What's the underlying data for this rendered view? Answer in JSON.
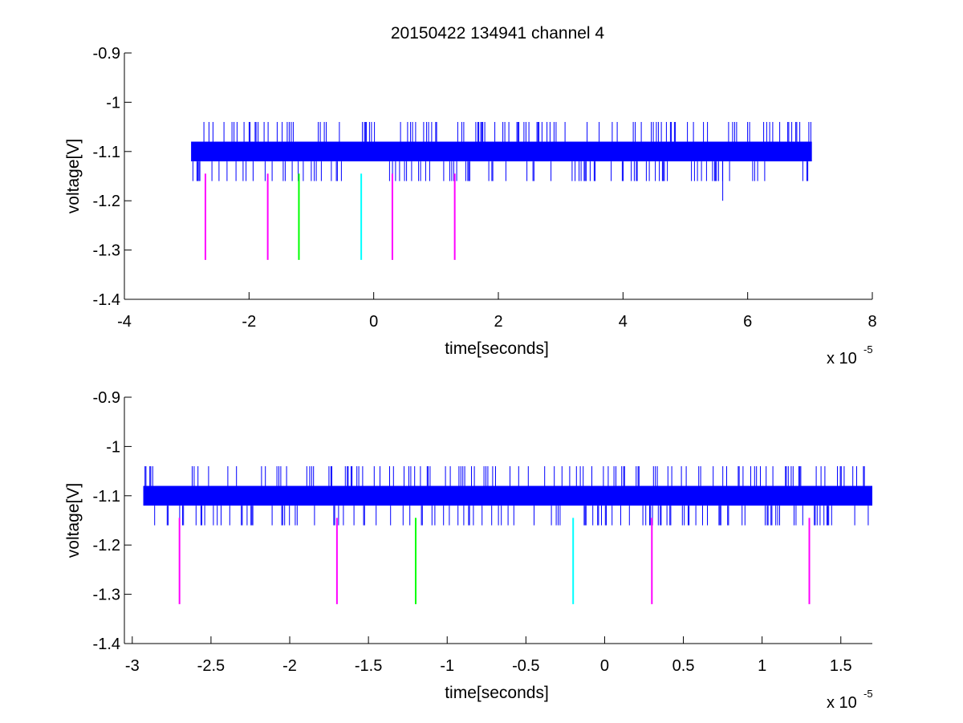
{
  "figure": {
    "title": "20150422 134941 channel 4"
  },
  "chart_data": [
    {
      "type": "line",
      "title": "20150422 134941 channel 4",
      "xlabel": "time[seconds]",
      "ylabel": "voltage[V]",
      "x_exponent_label": "x 10",
      "x_exponent": "-5",
      "xlim": [
        -4e-05,
        8e-05
      ],
      "ylim": [
        -1.4,
        -0.9
      ],
      "xticks": [
        -4e-05,
        -2e-05,
        0,
        2e-05,
        4e-05,
        6e-05,
        8e-05
      ],
      "xtick_labels": [
        "-4",
        "-2",
        "0",
        "2",
        "4",
        "6",
        "8"
      ],
      "yticks": [
        -1.4,
        -1.3,
        -1.2,
        -1.1,
        -1.0,
        -0.9
      ],
      "ytick_labels": [
        "-1.4",
        "-1.3",
        "-1.2",
        "-1.1",
        "-1",
        "-0.9"
      ],
      "grid": false,
      "signal": {
        "color": "#0000ff",
        "x_range": [
          -2.93e-05,
          7.03e-05
        ],
        "band": [
          -1.12,
          -1.08
        ],
        "spike_high": -1.04,
        "spike_low": -1.16,
        "outlier": {
          "x": 5.6e-05,
          "y": -1.2
        }
      },
      "markers": [
        {
          "x": -2.7e-05,
          "y_top": -1.145,
          "y_bottom": -1.32,
          "color": "#ff00ff"
        },
        {
          "x": -1.7e-05,
          "y_top": -1.145,
          "y_bottom": -1.32,
          "color": "#ff00ff"
        },
        {
          "x": -1.2e-05,
          "y_top": -1.145,
          "y_bottom": -1.32,
          "color": "#00ff00"
        },
        {
          "x": -2e-06,
          "y_top": -1.145,
          "y_bottom": -1.32,
          "color": "#00ffff"
        },
        {
          "x": 3e-06,
          "y_top": -1.145,
          "y_bottom": -1.32,
          "color": "#ff00ff"
        },
        {
          "x": 1.3e-05,
          "y_top": -1.145,
          "y_bottom": -1.32,
          "color": "#ff00ff"
        }
      ]
    },
    {
      "type": "line",
      "title": "",
      "xlabel": "time[seconds]",
      "ylabel": "voltage[V]",
      "x_exponent_label": "x 10",
      "x_exponent": "-5",
      "xlim": [
        -3.05e-05,
        1.7e-05
      ],
      "ylim": [
        -1.4,
        -0.9
      ],
      "xticks": [
        -3e-05,
        -2.5e-05,
        -2e-05,
        -1.5e-05,
        -1e-05,
        -5e-06,
        0,
        5e-06,
        1e-05,
        1.5e-05
      ],
      "xtick_labels": [
        "-3",
        "-2.5",
        "-2",
        "-1.5",
        "-1",
        "-0.5",
        "0",
        "0.5",
        "1",
        "1.5"
      ],
      "yticks": [
        -1.4,
        -1.3,
        -1.2,
        -1.1,
        -1.0,
        -0.9
      ],
      "ytick_labels": [
        "-1.4",
        "-1.3",
        "-1.2",
        "-1.1",
        "-1",
        "-0.9"
      ],
      "grid": false,
      "signal": {
        "color": "#0000ff",
        "x_range": [
          -2.93e-05,
          1.7e-05
        ],
        "band": [
          -1.12,
          -1.08
        ],
        "spike_high": -1.04,
        "spike_low": -1.16
      },
      "markers": [
        {
          "x": -2.7e-05,
          "y_top": -1.145,
          "y_bottom": -1.32,
          "color": "#ff00ff"
        },
        {
          "x": -1.7e-05,
          "y_top": -1.145,
          "y_bottom": -1.32,
          "color": "#ff00ff"
        },
        {
          "x": -1.2e-05,
          "y_top": -1.145,
          "y_bottom": -1.32,
          "color": "#00ff00"
        },
        {
          "x": -2e-06,
          "y_top": -1.145,
          "y_bottom": -1.32,
          "color": "#00ffff"
        },
        {
          "x": 3e-06,
          "y_top": -1.145,
          "y_bottom": -1.32,
          "color": "#ff00ff"
        },
        {
          "x": 1.3e-05,
          "y_top": -1.145,
          "y_bottom": -1.32,
          "color": "#ff00ff"
        }
      ]
    }
  ]
}
